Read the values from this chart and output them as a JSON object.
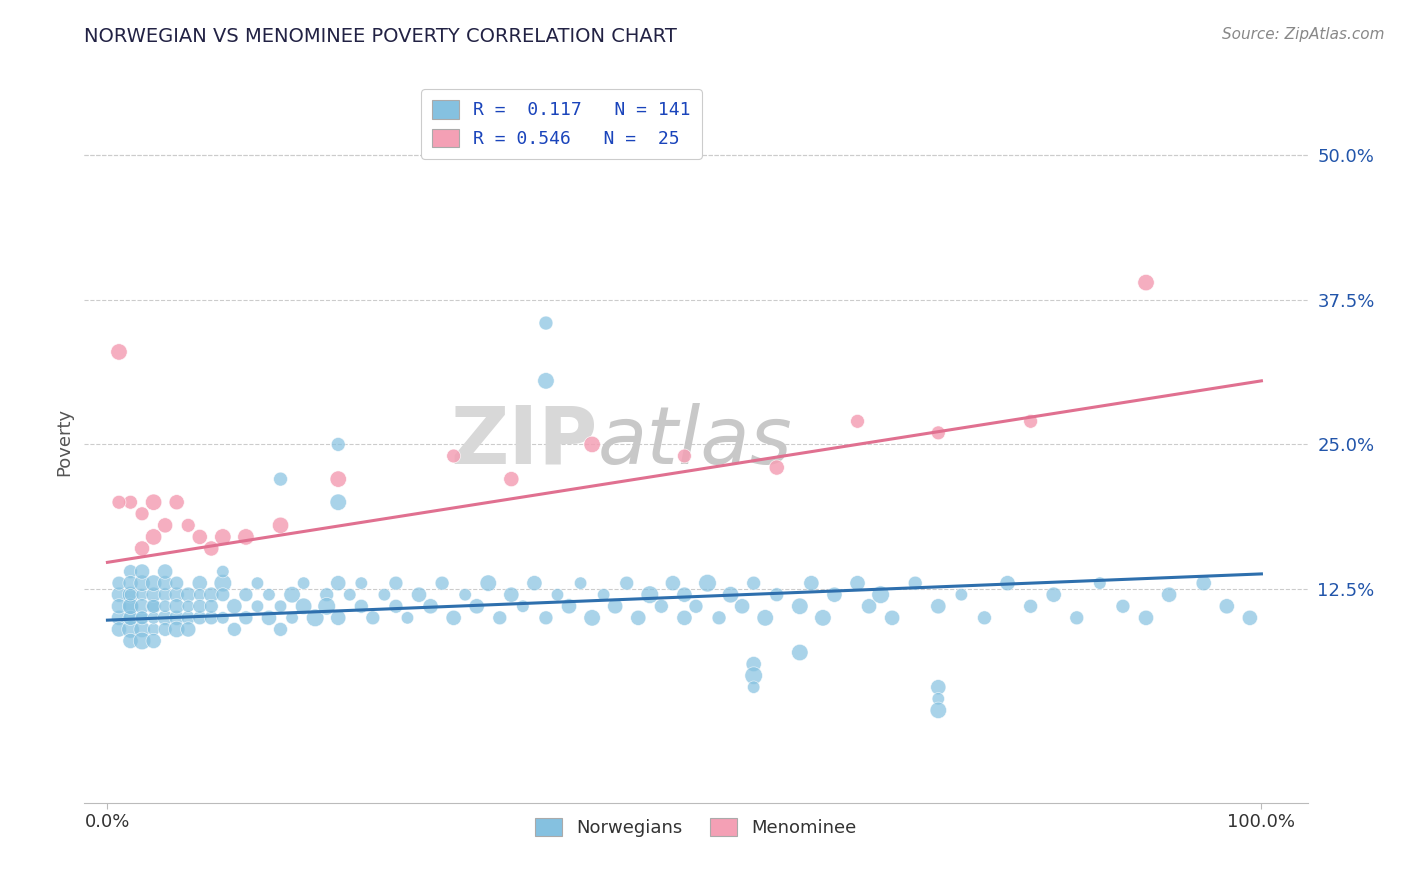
{
  "title": "NORWEGIAN VS MENOMINEE POVERTY CORRELATION CHART",
  "source": "Source: ZipAtlas.com",
  "ylabel": "Poverty",
  "ytick_vals": [
    0.0,
    0.125,
    0.25,
    0.375,
    0.5
  ],
  "ytick_labels": [
    "",
    "12.5%",
    "25.0%",
    "37.5%",
    "50.0%"
  ],
  "xlim": [
    -0.02,
    1.04
  ],
  "ylim": [
    -0.06,
    0.565
  ],
  "blue_color": "#85c1e0",
  "pink_color": "#f4a0b5",
  "blue_line_color": "#2e6fad",
  "pink_line_color": "#e07090",
  "watermark_zip": "ZIP",
  "watermark_atlas": "atlas",
  "nor_line_x0": 0.0,
  "nor_line_x1": 1.0,
  "nor_line_y0": 0.098,
  "nor_line_y1": 0.138,
  "men_line_x0": 0.0,
  "men_line_x1": 1.0,
  "men_line_y0": 0.148,
  "men_line_y1": 0.305,
  "norwegians_x": [
    0.01,
    0.01,
    0.01,
    0.01,
    0.01,
    0.02,
    0.02,
    0.02,
    0.02,
    0.02,
    0.02,
    0.02,
    0.02,
    0.02,
    0.02,
    0.03,
    0.03,
    0.03,
    0.03,
    0.03,
    0.03,
    0.03,
    0.03,
    0.04,
    0.04,
    0.04,
    0.04,
    0.04,
    0.04,
    0.04,
    0.05,
    0.05,
    0.05,
    0.05,
    0.05,
    0.05,
    0.06,
    0.06,
    0.06,
    0.06,
    0.06,
    0.07,
    0.07,
    0.07,
    0.07,
    0.08,
    0.08,
    0.08,
    0.08,
    0.09,
    0.09,
    0.09,
    0.1,
    0.1,
    0.1,
    0.1,
    0.11,
    0.11,
    0.12,
    0.12,
    0.13,
    0.13,
    0.14,
    0.14,
    0.15,
    0.15,
    0.16,
    0.16,
    0.17,
    0.17,
    0.18,
    0.19,
    0.19,
    0.2,
    0.2,
    0.21,
    0.22,
    0.22,
    0.23,
    0.24,
    0.25,
    0.25,
    0.26,
    0.27,
    0.28,
    0.29,
    0.3,
    0.31,
    0.32,
    0.33,
    0.34,
    0.35,
    0.36,
    0.37,
    0.38,
    0.39,
    0.4,
    0.41,
    0.42,
    0.43,
    0.44,
    0.45,
    0.46,
    0.47,
    0.48,
    0.49,
    0.5,
    0.5,
    0.51,
    0.52,
    0.53,
    0.54,
    0.55,
    0.56,
    0.57,
    0.58,
    0.6,
    0.61,
    0.62,
    0.63,
    0.65,
    0.66,
    0.67,
    0.68,
    0.7,
    0.72,
    0.74,
    0.76,
    0.78,
    0.8,
    0.82,
    0.84,
    0.86,
    0.88,
    0.9,
    0.92,
    0.95,
    0.97,
    0.99
  ],
  "norwegians_y": [
    0.1,
    0.12,
    0.09,
    0.11,
    0.13,
    0.11,
    0.1,
    0.12,
    0.09,
    0.14,
    0.08,
    0.13,
    0.1,
    0.11,
    0.12,
    0.1,
    0.12,
    0.09,
    0.11,
    0.13,
    0.08,
    0.14,
    0.1,
    0.11,
    0.09,
    0.12,
    0.1,
    0.13,
    0.08,
    0.11,
    0.12,
    0.1,
    0.09,
    0.13,
    0.11,
    0.14,
    0.1,
    0.12,
    0.09,
    0.11,
    0.13,
    0.1,
    0.12,
    0.11,
    0.09,
    0.13,
    0.1,
    0.12,
    0.11,
    0.1,
    0.12,
    0.11,
    0.13,
    0.1,
    0.12,
    0.14,
    0.11,
    0.09,
    0.12,
    0.1,
    0.11,
    0.13,
    0.1,
    0.12,
    0.11,
    0.09,
    0.12,
    0.1,
    0.11,
    0.13,
    0.1,
    0.12,
    0.11,
    0.13,
    0.1,
    0.12,
    0.11,
    0.13,
    0.1,
    0.12,
    0.11,
    0.13,
    0.1,
    0.12,
    0.11,
    0.13,
    0.1,
    0.12,
    0.11,
    0.13,
    0.1,
    0.12,
    0.11,
    0.13,
    0.1,
    0.12,
    0.11,
    0.13,
    0.1,
    0.12,
    0.11,
    0.13,
    0.1,
    0.12,
    0.11,
    0.13,
    0.1,
    0.12,
    0.11,
    0.13,
    0.1,
    0.12,
    0.11,
    0.13,
    0.1,
    0.12,
    0.11,
    0.13,
    0.1,
    0.12,
    0.13,
    0.11,
    0.12,
    0.1,
    0.13,
    0.11,
    0.12,
    0.1,
    0.13,
    0.11,
    0.12,
    0.1,
    0.13,
    0.11,
    0.1,
    0.12,
    0.13,
    0.11,
    0.1
  ],
  "norwegians_y_outliers": [
    0.355,
    0.305,
    0.22,
    0.25,
    0.2,
    0.07,
    0.04,
    0.03,
    0.02,
    0.06,
    0.05,
    0.04
  ],
  "norwegians_x_outliers": [
    0.38,
    0.38,
    0.15,
    0.2,
    0.2,
    0.6,
    0.72,
    0.72,
    0.72,
    0.56,
    0.56,
    0.56
  ],
  "menominee_x": [
    0.01,
    0.02,
    0.03,
    0.03,
    0.04,
    0.04,
    0.05,
    0.06,
    0.07,
    0.08,
    0.09,
    0.1,
    0.12,
    0.15,
    0.2,
    0.3,
    0.35,
    0.42,
    0.5,
    0.58,
    0.65,
    0.72,
    0.8,
    0.9,
    0.01
  ],
  "menominee_y": [
    0.33,
    0.2,
    0.16,
    0.19,
    0.17,
    0.2,
    0.18,
    0.2,
    0.18,
    0.17,
    0.16,
    0.17,
    0.17,
    0.18,
    0.22,
    0.24,
    0.22,
    0.25,
    0.24,
    0.23,
    0.27,
    0.26,
    0.27,
    0.39,
    0.2
  ]
}
